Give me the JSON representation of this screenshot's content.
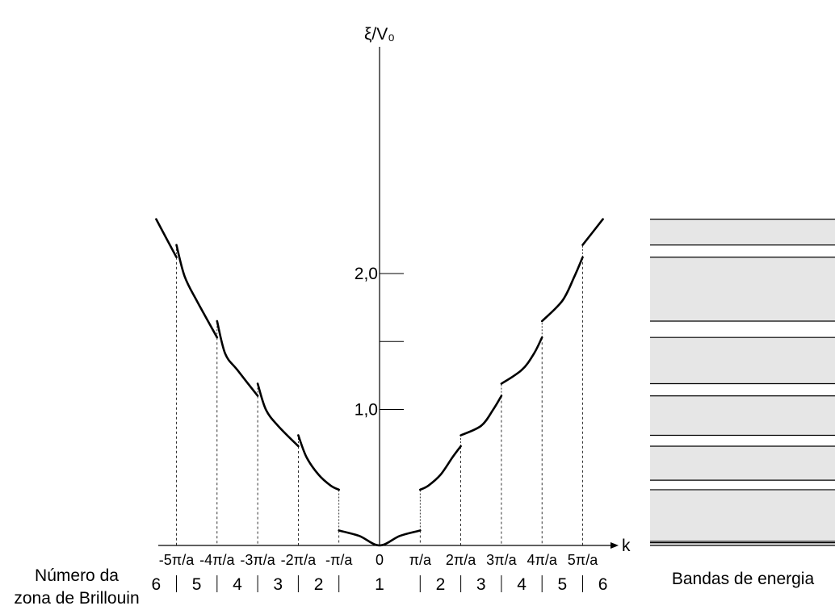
{
  "chart_data": {
    "type": "line",
    "y_axis_label": "ξ/V₀",
    "x_axis_label": "k",
    "y_tick_labels": [
      "1,0",
      "2,0"
    ],
    "y_ticks": [
      1.0,
      1.5,
      2.0
    ],
    "x_tick_labels": [
      "-5π/a",
      "-4π/a",
      "-3π/a",
      "-2π/a",
      "-π/a",
      "0",
      "π/a",
      "2π/a",
      "3π/a",
      "4π/a",
      "5π/a"
    ],
    "k_boundaries": [
      -5,
      -4,
      -3,
      -2,
      -1,
      1,
      2,
      3,
      4,
      5
    ],
    "x_units": "π/a",
    "ylim": [
      0,
      2.4
    ],
    "xlim": [
      -5.9,
      5.9
    ],
    "series": [
      {
        "points": [
          {
            "k": -5.5,
            "e": 2.4
          },
          {
            "k": -5,
            "e": 2.12
          },
          {
            "k": -4.8,
            "e": 1.98
          },
          {
            "k": -4.5,
            "e": 1.8
          },
          {
            "k": -4,
            "e": 1.53
          },
          {
            "k": -3.8,
            "e": 1.41
          },
          {
            "k": -3.5,
            "e": 1.29
          },
          {
            "k": -3,
            "e": 1.1
          },
          {
            "k": -2.8,
            "e": 1.0
          },
          {
            "k": -2.5,
            "e": 0.88
          },
          {
            "k": -2,
            "e": 0.73
          },
          {
            "k": -1.8,
            "e": 0.65
          },
          {
            "k": -1.5,
            "e": 0.52
          },
          {
            "k": -1.2,
            "e": 0.44
          },
          {
            "k": -1,
            "e": 0.41
          },
          {
            "k": -1,
            "e": 0.11
          },
          {
            "k": -0.5,
            "e": 0.07
          },
          {
            "k": 0,
            "e": 0.0
          },
          {
            "k": 0.5,
            "e": 0.07
          },
          {
            "k": 1,
            "e": 0.11
          },
          {
            "k": 1,
            "e": 0.41
          },
          {
            "k": 1.2,
            "e": 0.44
          },
          {
            "k": 1.5,
            "e": 0.52
          },
          {
            "k": 1.8,
            "e": 0.65
          },
          {
            "k": 2,
            "e": 0.73
          },
          {
            "k": 2.5,
            "e": 0.88
          },
          {
            "k": 2.8,
            "e": 1.0
          },
          {
            "k": 3,
            "e": 1.1
          },
          {
            "k": 3.5,
            "e": 1.29
          },
          {
            "k": 3.8,
            "e": 1.41
          },
          {
            "k": 4,
            "e": 1.53
          },
          {
            "k": 4.5,
            "e": 1.8
          },
          {
            "k": 4.8,
            "e": 1.98
          },
          {
            "k": 5,
            "e": 2.12
          },
          {
            "k": 5.5,
            "e": 2.4
          }
        ]
      }
    ],
    "energy_bands": [
      [
        0.0,
        0.02
      ],
      [
        0.03,
        0.41
      ],
      [
        0.48,
        0.73
      ],
      [
        0.81,
        1.1
      ],
      [
        1.19,
        1.53
      ],
      [
        1.65,
        2.12
      ],
      [
        2.21,
        2.4
      ]
    ]
  },
  "labels": {
    "zone_title_line1": "Número da",
    "zone_title_line2": "zona de Brillouin",
    "zone_numbers": [
      "6",
      "5",
      "4",
      "3",
      "2",
      "1",
      "2",
      "3",
      "4",
      "5",
      "6"
    ],
    "bands_caption": "Bandas de energia"
  },
  "colors": {
    "curve": "#000000",
    "band_fill": "#e6e6e6",
    "band_line": "#000000"
  }
}
